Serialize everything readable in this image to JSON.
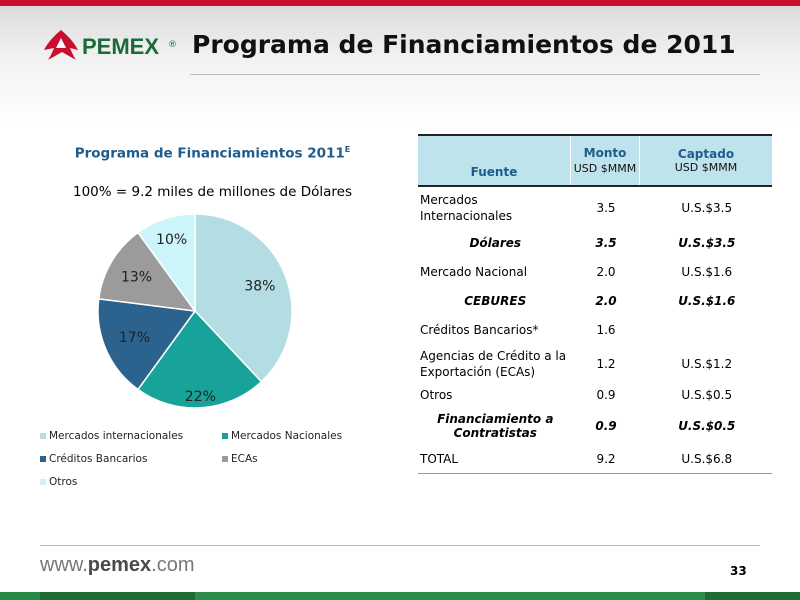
{
  "header": {
    "logo_text": "PEMEX",
    "logo_reg": "®",
    "title": "Programa de Financiamientos de 2011"
  },
  "chart": {
    "title": "Programa de Financiamientos 2011",
    "title_sup": "E",
    "subtitle": "100% = 9.2 miles de millones de Dólares"
  },
  "chart_data": {
    "type": "pie",
    "title": "Programa de Financiamientos 2011E",
    "subtitle": "100% = 9.2 miles de millones de Dólares",
    "legend_position": "bottom",
    "slices": [
      {
        "name": "Mercados internacionales",
        "value": 38,
        "label": "38%",
        "color": "#b3dde2"
      },
      {
        "name": "Mercados Nacionales",
        "value": 22,
        "label": "22%",
        "color": "#17a39a"
      },
      {
        "name": "Créditos Bancarios",
        "value": 17,
        "label": "17%",
        "color": "#2c628e"
      },
      {
        "name": "ECAs",
        "value": 13,
        "label": "13%",
        "color": "#9b9b9b"
      },
      {
        "name": "Otros",
        "value": 10,
        "label": "10%",
        "color": "#cbf5f9"
      }
    ]
  },
  "table": {
    "headers": {
      "fuente": "Fuente",
      "monto": "Monto",
      "monto_sub": "USD $MMM",
      "captado": "Captado",
      "captado_sub": "USD $MMM"
    },
    "rows": [
      {
        "fuente": "Mercados Internacionales",
        "monto": "3.5",
        "captado": "U.S.$3.5",
        "sub": false
      },
      {
        "fuente": "Dólares",
        "monto": "3.5",
        "captado": "U.S.$3.5",
        "sub": true
      },
      {
        "fuente": "Mercado Nacional",
        "monto": "2.0",
        "captado": "U.S.$1.6",
        "sub": false
      },
      {
        "fuente": "CEBURES",
        "monto": "2.0",
        "captado": "U.S.$1.6",
        "sub": true
      },
      {
        "fuente": "Créditos Bancarios*",
        "monto": "1.6",
        "captado": "",
        "sub": false
      },
      {
        "fuente": "Agencias de Crédito a la Exportación (ECAs)",
        "monto": "1.2",
        "captado": "U.S.$1.2",
        "sub": false
      },
      {
        "fuente": "Otros",
        "monto": "0.9",
        "captado": "U.S.$0.5",
        "sub": false
      },
      {
        "fuente": "Financiamiento a Contratistas",
        "monto": "0.9",
        "captado": "U.S.$0.5",
        "sub": true
      },
      {
        "fuente": "TOTAL",
        "monto": "9.2",
        "captado": "U.S.$6.8",
        "sub": false
      }
    ]
  },
  "footer": {
    "url_prefix": "www.",
    "url_bold": "pemex",
    "url_suffix": ".com",
    "page": "33"
  },
  "colors": {
    "accent_red": "#c8102e",
    "brand_green": "#1e6b34",
    "header_fill": "#bfe3ec",
    "title_blue": "#1f5c8c"
  }
}
